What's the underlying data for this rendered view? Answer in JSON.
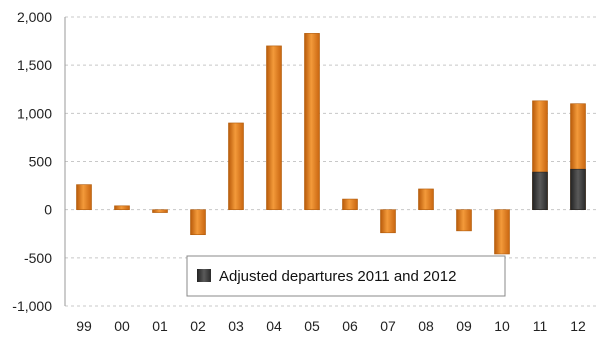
{
  "chart_data": {
    "type": "bar",
    "categories": [
      "99",
      "00",
      "01",
      "02",
      "03",
      "04",
      "05",
      "06",
      "07",
      "08",
      "09",
      "10",
      "11",
      "12"
    ],
    "series": [
      {
        "values": [
          260,
          40,
          -30,
          -260,
          900,
          1700,
          1830,
          110,
          -240,
          215,
          -220,
          -460,
          1130,
          1100
        ],
        "color": "#e8801c"
      },
      {
        "name": "Adjusted departures 2011 and 2012",
        "values": [
          null,
          null,
          null,
          null,
          null,
          null,
          null,
          null,
          null,
          null,
          null,
          null,
          390,
          420
        ],
        "color": "#3f3f3f"
      }
    ],
    "y_ticks": [
      "2,000",
      "1,500",
      "1,000",
      "500",
      "0",
      "-500",
      "-1,000"
    ],
    "ylim": [
      -1000,
      2000
    ],
    "grid": "dashed horizontal",
    "legend": {
      "placement": "bottom-center",
      "label": "Adjusted departures 2011 and 2012"
    }
  }
}
